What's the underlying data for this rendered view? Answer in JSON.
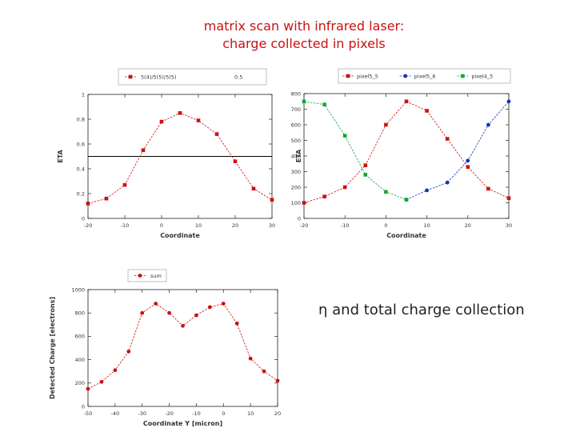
{
  "slide": {
    "title_line1": "matrix scan with infrared laser:",
    "title_line2": "charge collected in pixels",
    "caption_symbol": "η",
    "caption_text": "and total charge collection"
  },
  "chart_data": [
    {
      "type": "line",
      "title": "",
      "xlabel": "Coordinate",
      "ylabel": "ETA",
      "xlim": [
        -20,
        30
      ],
      "ylim": [
        0,
        1
      ],
      "x_ticks": [
        -20,
        -10,
        0,
        10,
        20,
        30
      ],
      "y_ticks": [
        0,
        0.2,
        0.4,
        0.6,
        0.8,
        1
      ],
      "x_tick_labels": [
        "-20",
        "-10",
        "0",
        "10",
        "20",
        "30"
      ],
      "y_tick_labels": [
        "0",
        "0.2",
        "0.4",
        "0.6",
        "0.8",
        "1"
      ],
      "legend": {
        "position": "top",
        "entry": "5(4)/5(5)/5(5)",
        "extra": "0.5"
      },
      "series": [
        {
          "color": "#cc1111",
          "marker": "square",
          "x": [
            -20,
            -15,
            -10,
            -5,
            0,
            5,
            10,
            15,
            20,
            25,
            30
          ],
          "values": [
            0.12,
            0.16,
            0.27,
            0.55,
            0.78,
            0.85,
            0.79,
            0.68,
            0.46,
            0.24,
            0.15
          ]
        }
      ],
      "hline": {
        "y": 0.5,
        "color": "#000000"
      }
    },
    {
      "type": "line",
      "title": "",
      "xlabel": "Coordinate",
      "ylabel": "ETA",
      "xlim": [
        -20,
        30
      ],
      "ylim": [
        0,
        800
      ],
      "x_ticks": [
        -20,
        -10,
        0,
        10,
        20,
        30
      ],
      "y_ticks": [
        0,
        100,
        200,
        300,
        400,
        500,
        600,
        700,
        800
      ],
      "x_tick_labels": [
        "-20",
        "-10",
        "0",
        "10",
        "20",
        "30"
      ],
      "y_tick_labels": [
        "0",
        "100",
        "200",
        "300",
        "400",
        "500",
        "600",
        "700",
        "800"
      ],
      "legend": {
        "position": "top"
      },
      "series": [
        {
          "name": "pixel5_5",
          "color": "#cc1111",
          "marker": "square",
          "x": [
            -20,
            -15,
            -10,
            -5,
            0,
            5,
            10,
            15,
            20,
            25,
            30
          ],
          "values": [
            100,
            140,
            200,
            340,
            600,
            750,
            690,
            510,
            330,
            190,
            130
          ]
        },
        {
          "name": "pixel5_6",
          "color": "#1133bb",
          "marker": "circle",
          "x": [
            5,
            10,
            15,
            20,
            25,
            30
          ],
          "values": [
            120,
            180,
            230,
            370,
            600,
            750
          ]
        },
        {
          "name": "pixel4_5",
          "color": "#11aa33",
          "marker": "square",
          "x": [
            -20,
            -15,
            -10,
            -5,
            0,
            5
          ],
          "values": [
            750,
            730,
            530,
            280,
            170,
            120
          ]
        }
      ]
    },
    {
      "type": "line",
      "title": "",
      "xlabel": "Coordinate Y [micron]",
      "ylabel": "Detected Charge [electrons]",
      "xlim": [
        -50,
        20
      ],
      "ylim": [
        0,
        1000
      ],
      "x_ticks": [
        -50,
        -40,
        -30,
        -20,
        -10,
        0,
        10,
        20
      ],
      "y_ticks": [
        0,
        200,
        400,
        600,
        800,
        1000
      ],
      "x_tick_labels": [
        "-50",
        "-40",
        "-30",
        "-20",
        "-10",
        "0",
        "10",
        "20"
      ],
      "y_tick_labels": [
        "0",
        "200",
        "400",
        "600",
        "800",
        "1000"
      ],
      "legend": {
        "position": "top-left"
      },
      "series": [
        {
          "name": "sum",
          "color": "#cc1111",
          "marker": "circle",
          "x": [
            -50,
            -45,
            -40,
            -35,
            -30,
            -25,
            -20,
            -15,
            -10,
            -5,
            0,
            5,
            10,
            15,
            20
          ],
          "values": [
            150,
            210,
            310,
            470,
            800,
            880,
            800,
            690,
            780,
            850,
            880,
            710,
            410,
            300,
            220
          ]
        }
      ]
    }
  ]
}
